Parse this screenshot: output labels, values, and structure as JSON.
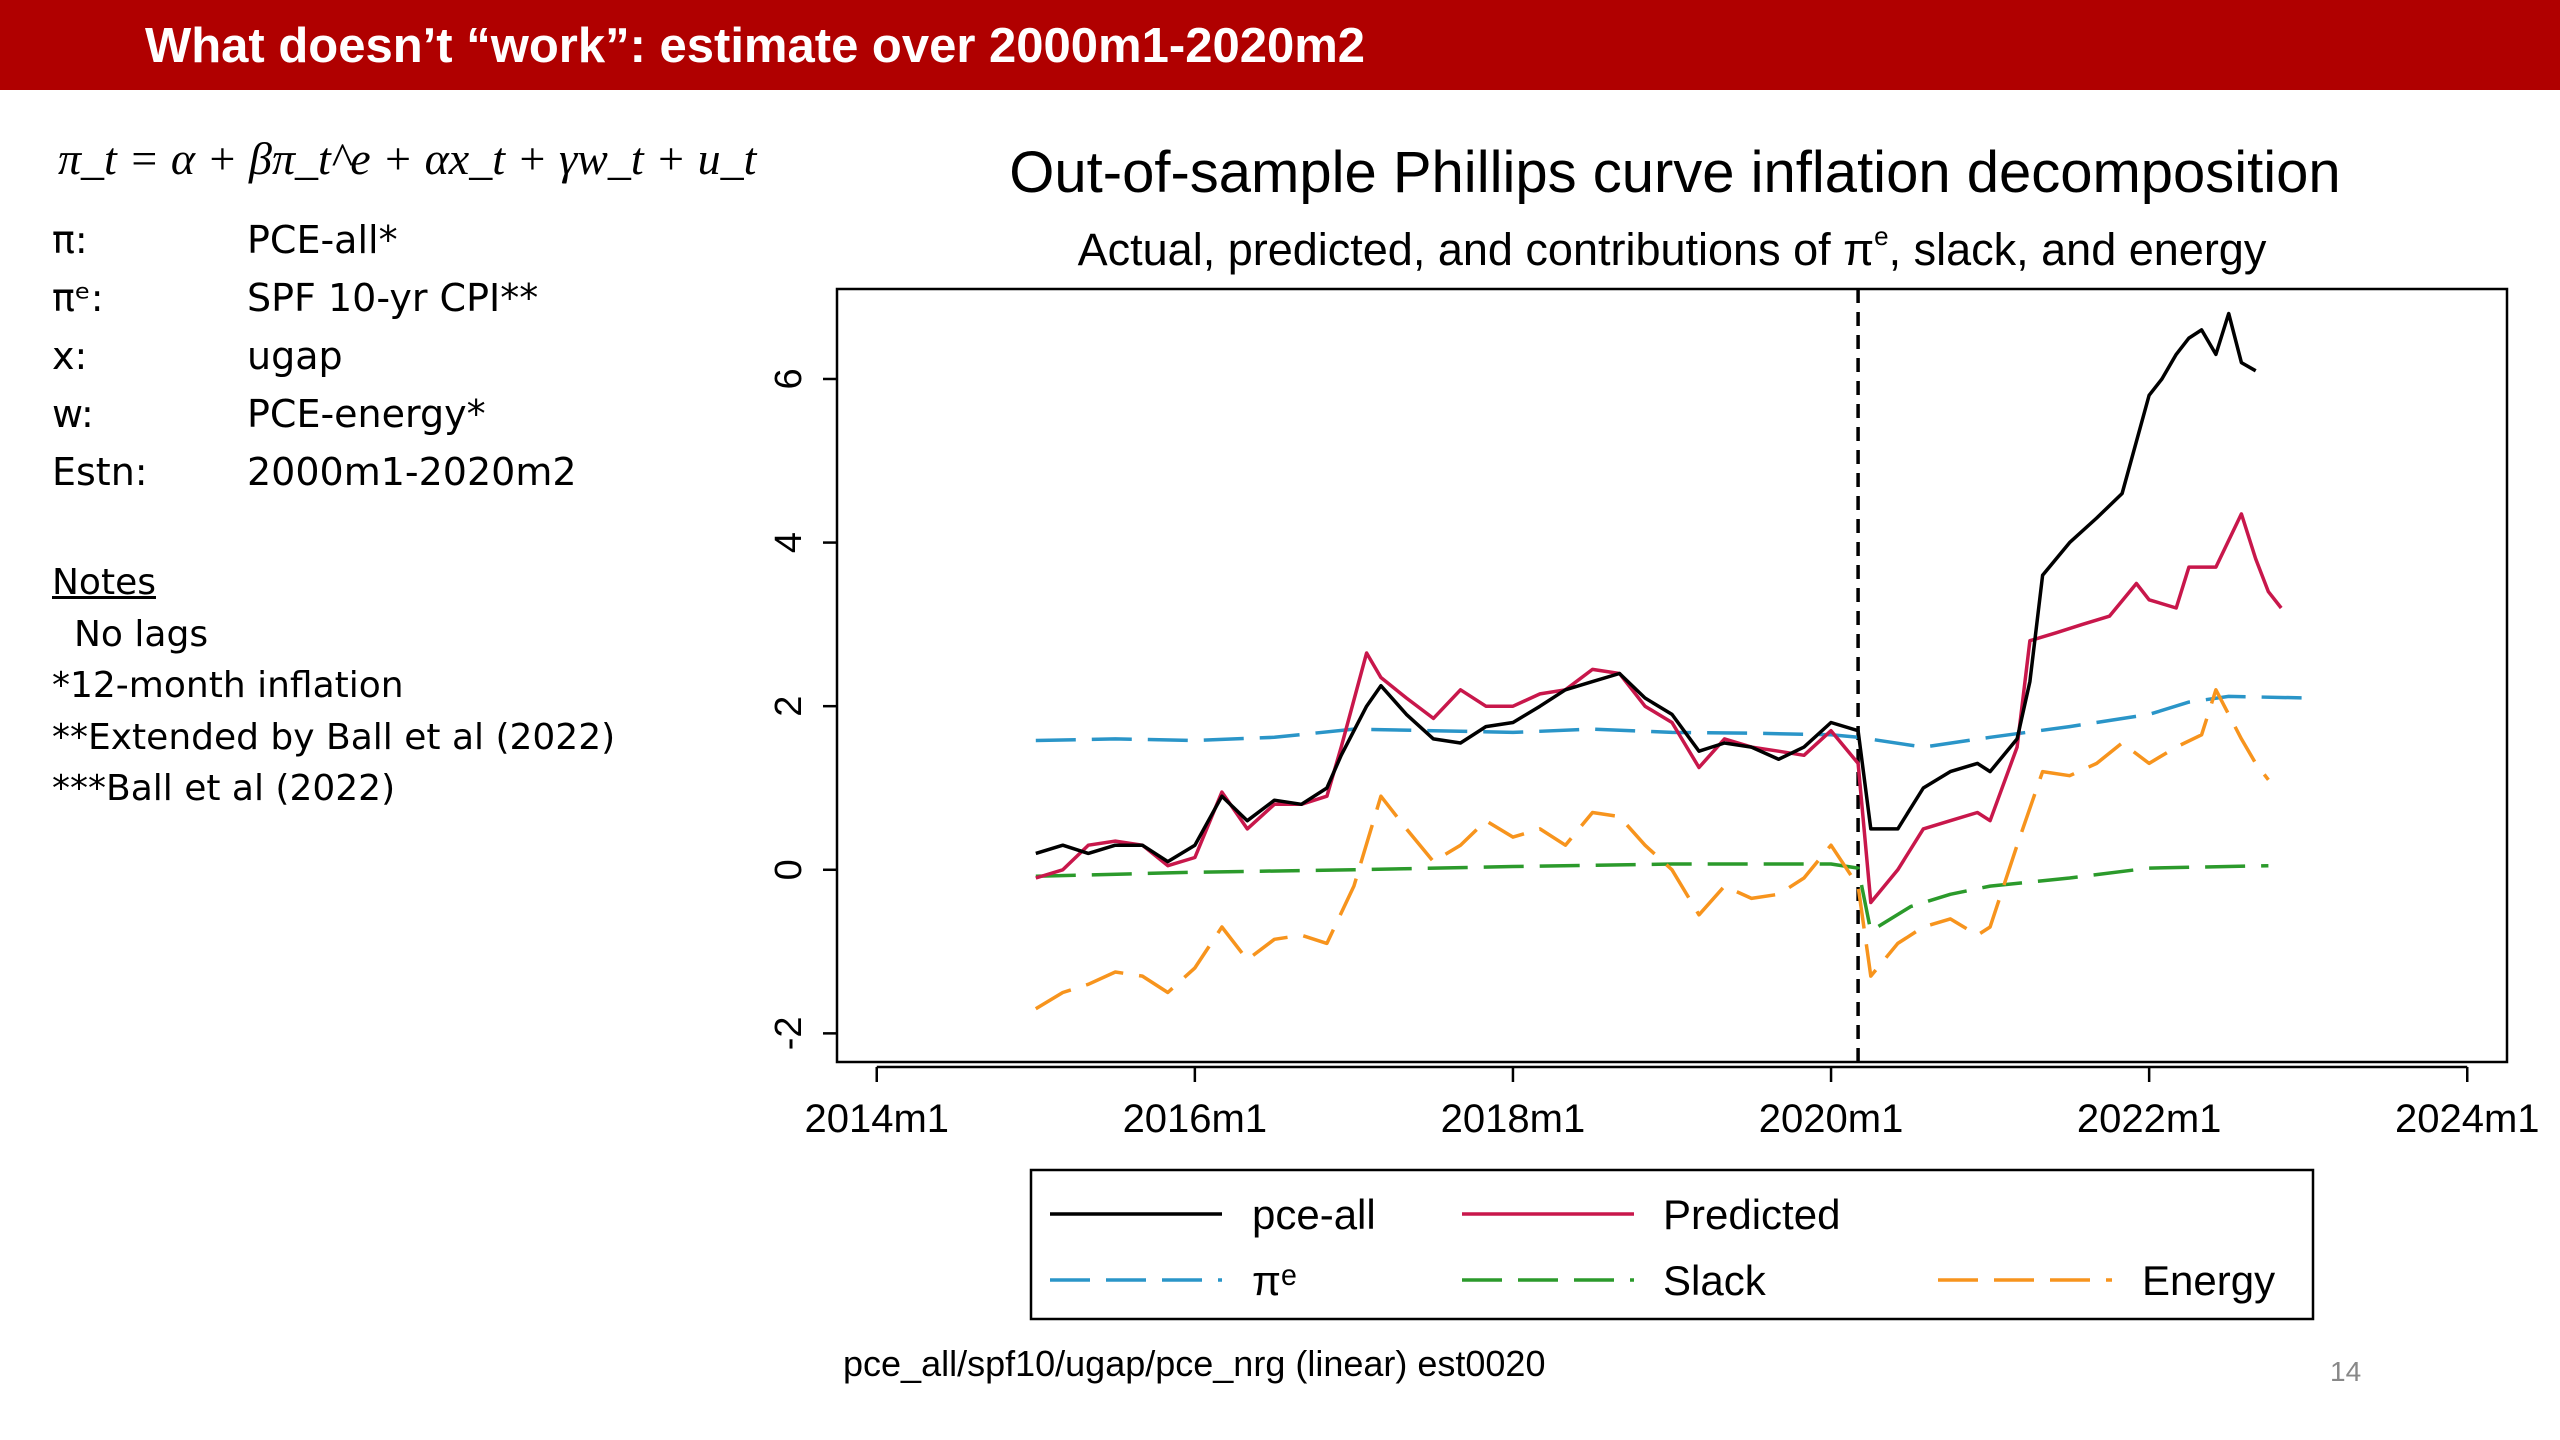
{
  "slide": {
    "title": "What doesn’t “work”:  estimate over 2000m1-2020m2",
    "equation": "π_t = α + βπ_t^e + αx_t + γw_t + u_t",
    "definitions": [
      {
        "symbol": "π:",
        "value": "PCE-all*"
      },
      {
        "symbol": "πᵉ:",
        "value": "SPF 10-yr CPI**"
      },
      {
        "symbol": "x:",
        "value": "ugap"
      },
      {
        "symbol": "w:",
        "value": "PCE-energy*"
      },
      {
        "symbol": "Estn:",
        "value": "2000m1-2020m2"
      }
    ],
    "notes": {
      "header": "Notes",
      "lines": [
        "No lags",
        "*12-month inflation",
        "**Extended by Ball et al (2022)",
        "***Ball et al (2022)"
      ]
    },
    "footer": "pce_all/spf10/ugap/pce_nrg (linear) est0020",
    "page_number": "14",
    "accent_color": "#b00000"
  },
  "chart_data": {
    "type": "line",
    "title": "Out-of-sample Phillips curve inflation decomposition",
    "subtitle": "Actual, predicted, and contributions of π",
    "subtitle_sup": "e",
    "subtitle_tail": ", slack, and energy",
    "xlim": [
      2013.75,
      2024.25
    ],
    "ylim": [
      -2.35,
      7.1
    ],
    "x_ticks": [
      {
        "value": 2014,
        "label": "2014m1"
      },
      {
        "value": 2016,
        "label": "2016m1"
      },
      {
        "value": 2018,
        "label": "2018m1"
      },
      {
        "value": 2020,
        "label": "2020m1"
      },
      {
        "value": 2022,
        "label": "2022m1"
      },
      {
        "value": 2024,
        "label": "2024m1"
      }
    ],
    "y_ticks": [
      {
        "value": -2,
        "label": "-2"
      },
      {
        "value": 0,
        "label": "0"
      },
      {
        "value": 2,
        "label": "2"
      },
      {
        "value": 4,
        "label": "4"
      },
      {
        "value": 6,
        "label": "6"
      }
    ],
    "vline": 2020.17,
    "legend_position": "bottom",
    "series": [
      {
        "name": "pce-all",
        "color": "#000000",
        "dash": "solid",
        "points": [
          [
            2015.0,
            0.2
          ],
          [
            2015.17,
            0.3
          ],
          [
            2015.33,
            0.2
          ],
          [
            2015.5,
            0.3
          ],
          [
            2015.67,
            0.3
          ],
          [
            2015.83,
            0.1
          ],
          [
            2016.0,
            0.3
          ],
          [
            2016.17,
            0.9
          ],
          [
            2016.33,
            0.6
          ],
          [
            2016.5,
            0.85
          ],
          [
            2016.67,
            0.8
          ],
          [
            2016.83,
            1.0
          ],
          [
            2016.92,
            1.4
          ],
          [
            2017.08,
            2.0
          ],
          [
            2017.17,
            2.25
          ],
          [
            2017.33,
            1.9
          ],
          [
            2017.5,
            1.6
          ],
          [
            2017.67,
            1.55
          ],
          [
            2017.83,
            1.75
          ],
          [
            2018.0,
            1.8
          ],
          [
            2018.17,
            2.0
          ],
          [
            2018.33,
            2.2
          ],
          [
            2018.5,
            2.3
          ],
          [
            2018.67,
            2.4
          ],
          [
            2018.83,
            2.1
          ],
          [
            2019.0,
            1.9
          ],
          [
            2019.17,
            1.45
          ],
          [
            2019.33,
            1.55
          ],
          [
            2019.5,
            1.5
          ],
          [
            2019.67,
            1.35
          ],
          [
            2019.83,
            1.5
          ],
          [
            2020.0,
            1.8
          ],
          [
            2020.17,
            1.7
          ],
          [
            2020.25,
            0.5
          ],
          [
            2020.42,
            0.5
          ],
          [
            2020.58,
            1.0
          ],
          [
            2020.75,
            1.2
          ],
          [
            2020.92,
            1.3
          ],
          [
            2021.0,
            1.2
          ],
          [
            2021.17,
            1.6
          ],
          [
            2021.25,
            2.3
          ],
          [
            2021.33,
            3.6
          ],
          [
            2021.5,
            4.0
          ],
          [
            2021.67,
            4.3
          ],
          [
            2021.83,
            4.6
          ],
          [
            2022.0,
            5.8
          ],
          [
            2022.08,
            6.0
          ],
          [
            2022.17,
            6.3
          ],
          [
            2022.25,
            6.5
          ],
          [
            2022.33,
            6.6
          ],
          [
            2022.42,
            6.3
          ],
          [
            2022.5,
            6.8
          ],
          [
            2022.58,
            6.2
          ],
          [
            2022.67,
            6.1
          ]
        ]
      },
      {
        "name": "Predicted",
        "color": "#c8174b",
        "dash": "solid",
        "points": [
          [
            2015.0,
            -0.1
          ],
          [
            2015.17,
            0.0
          ],
          [
            2015.33,
            0.3
          ],
          [
            2015.5,
            0.35
          ],
          [
            2015.67,
            0.3
          ],
          [
            2015.83,
            0.05
          ],
          [
            2016.0,
            0.15
          ],
          [
            2016.17,
            0.95
          ],
          [
            2016.33,
            0.5
          ],
          [
            2016.5,
            0.8
          ],
          [
            2016.67,
            0.8
          ],
          [
            2016.83,
            0.9
          ],
          [
            2016.92,
            1.5
          ],
          [
            2017.08,
            2.65
          ],
          [
            2017.17,
            2.35
          ],
          [
            2017.33,
            2.1
          ],
          [
            2017.5,
            1.85
          ],
          [
            2017.67,
            2.2
          ],
          [
            2017.83,
            2.0
          ],
          [
            2018.0,
            2.0
          ],
          [
            2018.17,
            2.15
          ],
          [
            2018.33,
            2.2
          ],
          [
            2018.5,
            2.45
          ],
          [
            2018.67,
            2.4
          ],
          [
            2018.83,
            2.0
          ],
          [
            2019.0,
            1.8
          ],
          [
            2019.17,
            1.25
          ],
          [
            2019.33,
            1.6
          ],
          [
            2019.5,
            1.5
          ],
          [
            2019.67,
            1.45
          ],
          [
            2019.83,
            1.4
          ],
          [
            2020.0,
            1.7
          ],
          [
            2020.17,
            1.3
          ],
          [
            2020.25,
            -0.4
          ],
          [
            2020.42,
            0.0
          ],
          [
            2020.58,
            0.5
          ],
          [
            2020.75,
            0.6
          ],
          [
            2020.92,
            0.7
          ],
          [
            2021.0,
            0.6
          ],
          [
            2021.17,
            1.5
          ],
          [
            2021.25,
            2.8
          ],
          [
            2021.42,
            2.9
          ],
          [
            2021.58,
            3.0
          ],
          [
            2021.75,
            3.1
          ],
          [
            2021.92,
            3.5
          ],
          [
            2022.0,
            3.3
          ],
          [
            2022.17,
            3.2
          ],
          [
            2022.25,
            3.7
          ],
          [
            2022.42,
            3.7
          ],
          [
            2022.58,
            4.35
          ],
          [
            2022.67,
            3.8
          ],
          [
            2022.75,
            3.4
          ],
          [
            2022.83,
            3.2
          ]
        ]
      },
      {
        "name": "πᵉ",
        "color": "#2a95c8",
        "dash": "long-dash",
        "points": [
          [
            2015.0,
            1.58
          ],
          [
            2015.5,
            1.6
          ],
          [
            2016.0,
            1.58
          ],
          [
            2016.5,
            1.62
          ],
          [
            2017.0,
            1.72
          ],
          [
            2017.5,
            1.7
          ],
          [
            2018.0,
            1.68
          ],
          [
            2018.5,
            1.72
          ],
          [
            2019.0,
            1.68
          ],
          [
            2019.5,
            1.67
          ],
          [
            2020.0,
            1.65
          ],
          [
            2020.17,
            1.62
          ],
          [
            2020.58,
            1.5
          ],
          [
            2021.0,
            1.62
          ],
          [
            2021.5,
            1.75
          ],
          [
            2022.0,
            1.9
          ],
          [
            2022.25,
            2.05
          ],
          [
            2022.5,
            2.12
          ],
          [
            2023.0,
            2.1
          ]
        ]
      },
      {
        "name": "Slack",
        "color": "#2b9a2b",
        "dash": "long-dash",
        "points": [
          [
            2015.0,
            -0.08
          ],
          [
            2016.0,
            -0.03
          ],
          [
            2017.0,
            0.0
          ],
          [
            2018.0,
            0.04
          ],
          [
            2019.0,
            0.07
          ],
          [
            2020.0,
            0.07
          ],
          [
            2020.17,
            0.02
          ],
          [
            2020.25,
            -0.75
          ],
          [
            2020.5,
            -0.45
          ],
          [
            2020.75,
            -0.3
          ],
          [
            2021.0,
            -0.2
          ],
          [
            2021.5,
            -0.1
          ],
          [
            2022.0,
            0.02
          ],
          [
            2022.75,
            0.05
          ]
        ]
      },
      {
        "name": "Energy",
        "color": "#f7941d",
        "dash": "long-dash",
        "points": [
          [
            2015.0,
            -1.7
          ],
          [
            2015.17,
            -1.5
          ],
          [
            2015.33,
            -1.4
          ],
          [
            2015.5,
            -1.25
          ],
          [
            2015.67,
            -1.3
          ],
          [
            2015.83,
            -1.5
          ],
          [
            2016.0,
            -1.2
          ],
          [
            2016.17,
            -0.7
          ],
          [
            2016.33,
            -1.1
          ],
          [
            2016.5,
            -0.85
          ],
          [
            2016.67,
            -0.8
          ],
          [
            2016.83,
            -0.9
          ],
          [
            2017.0,
            -0.2
          ],
          [
            2017.17,
            0.9
          ],
          [
            2017.33,
            0.5
          ],
          [
            2017.5,
            0.1
          ],
          [
            2017.67,
            0.3
          ],
          [
            2017.83,
            0.6
          ],
          [
            2018.0,
            0.4
          ],
          [
            2018.17,
            0.5
          ],
          [
            2018.33,
            0.3
          ],
          [
            2018.5,
            0.7
          ],
          [
            2018.67,
            0.65
          ],
          [
            2018.83,
            0.3
          ],
          [
            2019.0,
            0.0
          ],
          [
            2019.17,
            -0.55
          ],
          [
            2019.33,
            -0.2
          ],
          [
            2019.5,
            -0.35
          ],
          [
            2019.67,
            -0.3
          ],
          [
            2019.83,
            -0.1
          ],
          [
            2020.0,
            0.3
          ],
          [
            2020.17,
            -0.2
          ],
          [
            2020.25,
            -1.3
          ],
          [
            2020.42,
            -0.9
          ],
          [
            2020.58,
            -0.7
          ],
          [
            2020.75,
            -0.6
          ],
          [
            2020.92,
            -0.8
          ],
          [
            2021.0,
            -0.7
          ],
          [
            2021.17,
            0.3
          ],
          [
            2021.33,
            1.2
          ],
          [
            2021.5,
            1.15
          ],
          [
            2021.67,
            1.3
          ],
          [
            2021.83,
            1.55
          ],
          [
            2022.0,
            1.3
          ],
          [
            2022.17,
            1.5
          ],
          [
            2022.33,
            1.65
          ],
          [
            2022.42,
            2.2
          ],
          [
            2022.58,
            1.6
          ],
          [
            2022.67,
            1.3
          ],
          [
            2022.75,
            1.1
          ]
        ]
      }
    ]
  }
}
